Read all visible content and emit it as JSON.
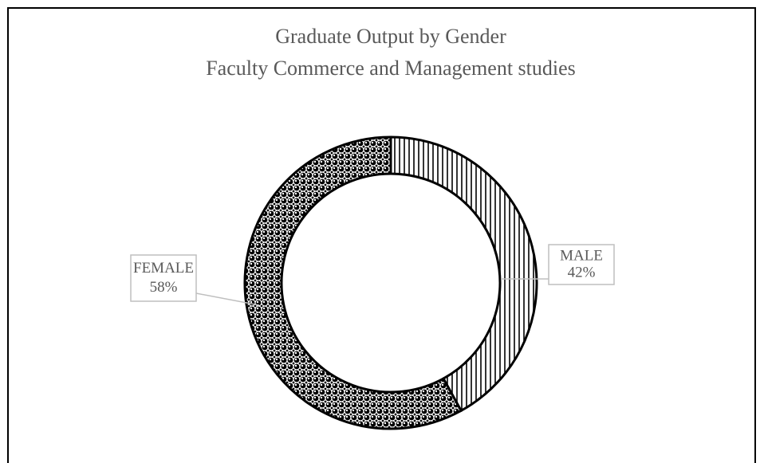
{
  "chart_data": {
    "type": "donut",
    "title": "Graduate Output by Gender",
    "subtitle": "Faculty Commerce and Management studies",
    "categories": [
      "MALE",
      "FEMALE"
    ],
    "values": [
      42,
      58
    ],
    "value_labels": [
      "42%",
      "58%"
    ],
    "patterns": [
      "vertical-lines",
      "dots"
    ],
    "color": "#000000"
  }
}
